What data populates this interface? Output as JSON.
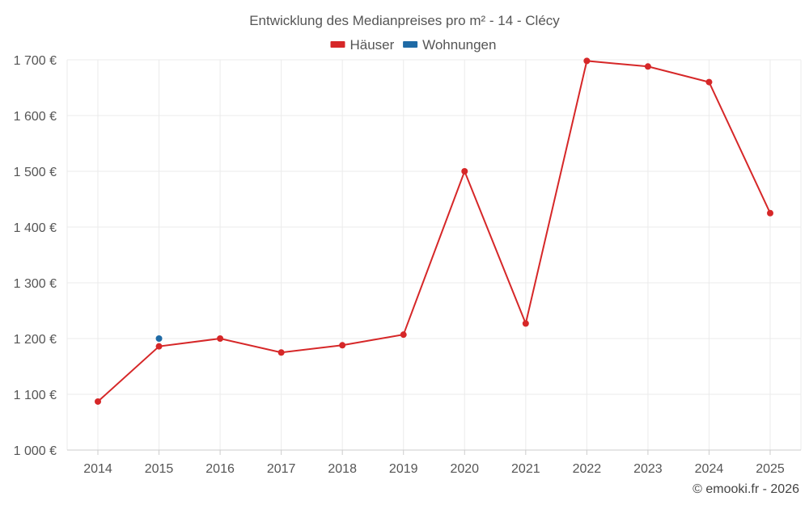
{
  "chart_data": {
    "type": "line",
    "title": "Entwicklung des Medianpreises pro m² - 14 - Clécy",
    "xlabel": "",
    "ylabel": "",
    "categories": [
      "2014",
      "2015",
      "2016",
      "2017",
      "2018",
      "2019",
      "2020",
      "2021",
      "2022",
      "2023",
      "2024",
      "2025"
    ],
    "ylim": [
      1000,
      1700
    ],
    "yticks": [
      1000,
      1100,
      1200,
      1300,
      1400,
      1500,
      1600,
      1700
    ],
    "ytick_labels": [
      "1 000 €",
      "1 100 €",
      "1 200 €",
      "1 300 €",
      "1 400 €",
      "1 500 €",
      "1 600 €",
      "1 700 €"
    ],
    "grid": true,
    "legend_position": "top-center",
    "series": [
      {
        "name": "Häuser",
        "color": "#d62728",
        "values": [
          1087,
          1186,
          1200,
          1175,
          1188,
          1207,
          1500,
          1227,
          1698,
          1688,
          1660,
          1425
        ]
      },
      {
        "name": "Wohnungen",
        "color": "#1f6aa5",
        "values": [
          null,
          1200,
          null,
          null,
          null,
          null,
          null,
          null,
          null,
          null,
          null,
          null
        ]
      }
    ]
  },
  "credit": "© emooki.fr - 2026"
}
